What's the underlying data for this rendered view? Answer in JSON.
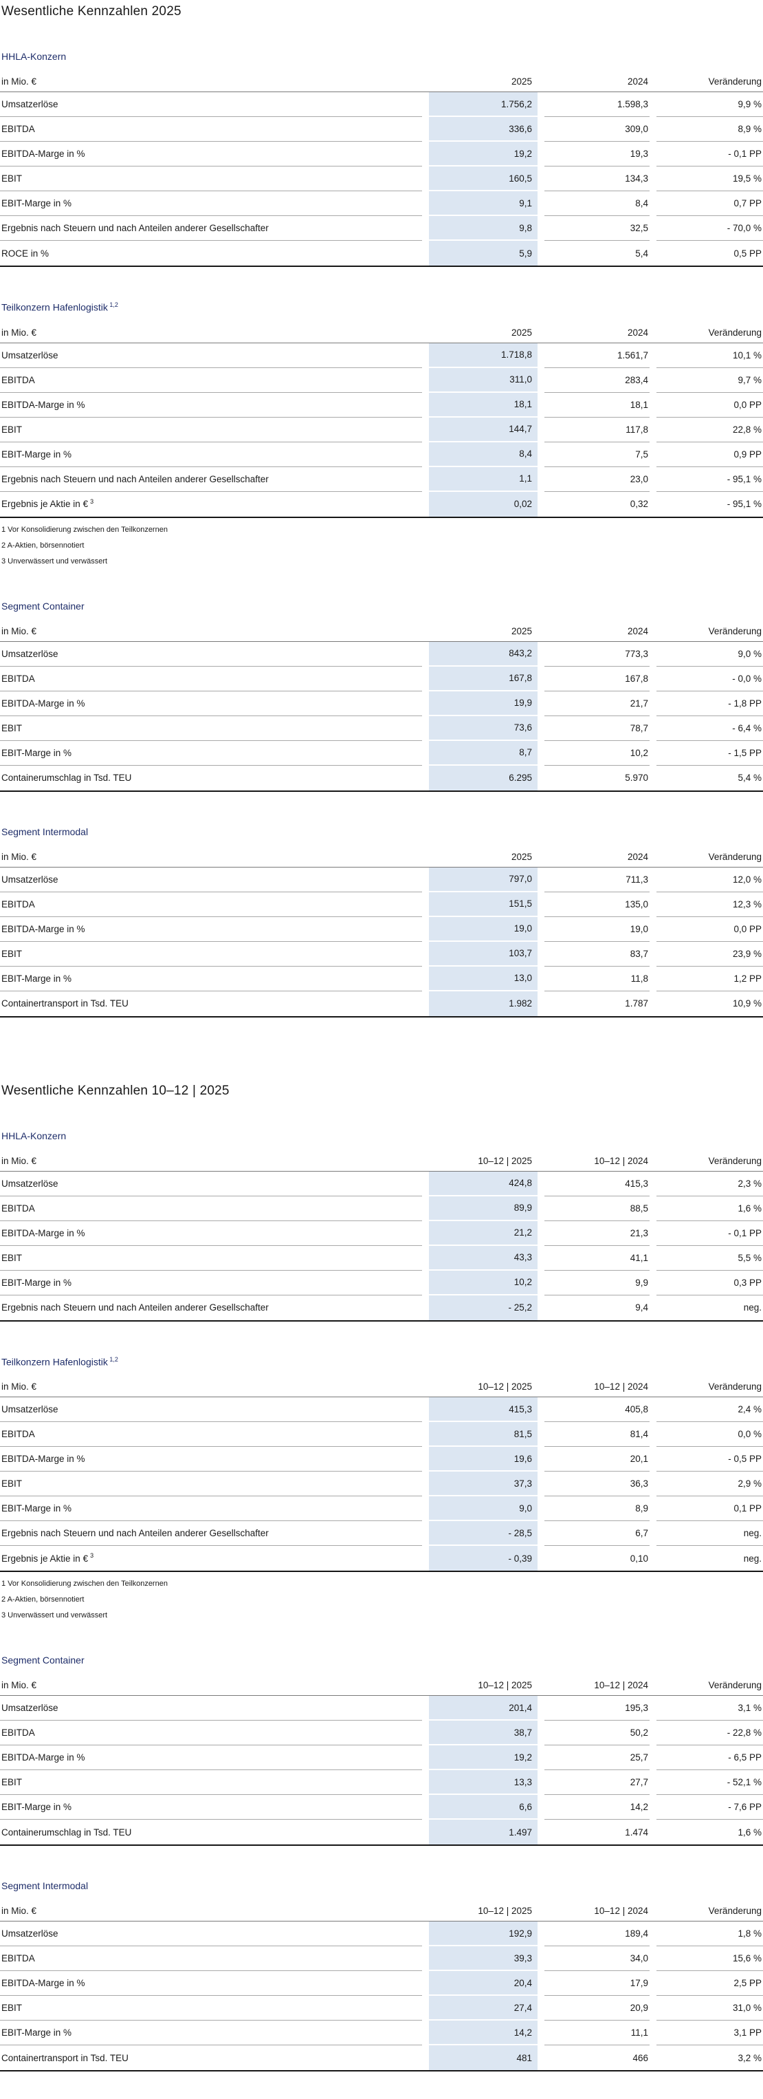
{
  "colors": {
    "highlight_column": "#dce6f2",
    "heading_blue": "#1e2d69",
    "row_separator": "#a9a9a9",
    "header_rule": "#7a7a7a",
    "bottom_rule": "#161616"
  },
  "sections": [
    {
      "title": "Wesentliche Kennzahlen 2025",
      "tables": [
        {
          "heading": "HHLA-Konzern",
          "heading_sup": "",
          "col_label": "in Mio. €",
          "col_current": "2025",
          "col_prior": "2024",
          "col_change": "Veränderung",
          "rows": [
            {
              "label": "Umsatzerlöse",
              "sup": "",
              "current": "1.756,2",
              "prior": "1.598,3",
              "change": "9,9 %"
            },
            {
              "label": "EBITDA",
              "sup": "",
              "current": "336,6",
              "prior": "309,0",
              "change": "8,9 %"
            },
            {
              "label": "EBITDA-Marge in %",
              "sup": "",
              "current": "19,2",
              "prior": "19,3",
              "change": "- 0,1 PP"
            },
            {
              "label": "EBIT",
              "sup": "",
              "current": "160,5",
              "prior": "134,3",
              "change": "19,5 %"
            },
            {
              "label": "EBIT-Marge in %",
              "sup": "",
              "current": "9,1",
              "prior": "8,4",
              "change": "0,7 PP"
            },
            {
              "label": "Ergebnis nach Steuern und nach Anteilen anderer Gesellschafter",
              "sup": "",
              "current": "9,8",
              "prior": "32,5",
              "change": "- 70,0 %"
            },
            {
              "label": "ROCE in %",
              "sup": "",
              "current": "5,9",
              "prior": "5,4",
              "change": "0,5 PP"
            }
          ],
          "footnotes": []
        },
        {
          "heading": "Teilkonzern Hafenlogistik",
          "heading_sup": "1,2",
          "col_label": "in Mio. €",
          "col_current": "2025",
          "col_prior": "2024",
          "col_change": "Veränderung",
          "rows": [
            {
              "label": "Umsatzerlöse",
              "sup": "",
              "current": "1.718,8",
              "prior": "1.561,7",
              "change": "10,1 %"
            },
            {
              "label": "EBITDA",
              "sup": "",
              "current": "311,0",
              "prior": "283,4",
              "change": "9,7 %"
            },
            {
              "label": "EBITDA-Marge in %",
              "sup": "",
              "current": "18,1",
              "prior": "18,1",
              "change": "0,0 PP"
            },
            {
              "label": "EBIT",
              "sup": "",
              "current": "144,7",
              "prior": "117,8",
              "change": "22,8 %"
            },
            {
              "label": "EBIT-Marge in %",
              "sup": "",
              "current": "8,4",
              "prior": "7,5",
              "change": "0,9 PP"
            },
            {
              "label": "Ergebnis nach Steuern und nach Anteilen anderer Gesellschafter",
              "sup": "",
              "current": "1,1",
              "prior": "23,0",
              "change": "- 95,1 %"
            },
            {
              "label": "Ergebnis je Aktie in €",
              "sup": "3",
              "current": "0,02",
              "prior": "0,32",
              "change": "- 95,1 %"
            }
          ],
          "footnotes": [
            "1 Vor Konsolidierung zwischen den Teilkonzernen",
            "2 A-Aktien, börsennotiert",
            "3 Unverwässert und verwässert"
          ]
        },
        {
          "heading": "Segment Container",
          "heading_sup": "",
          "col_label": "in Mio. €",
          "col_current": "2025",
          "col_prior": "2024",
          "col_change": "Veränderung",
          "rows": [
            {
              "label": "Umsatzerlöse",
              "sup": "",
              "current": "843,2",
              "prior": "773,3",
              "change": "9,0 %"
            },
            {
              "label": "EBITDA",
              "sup": "",
              "current": "167,8",
              "prior": "167,8",
              "change": "- 0,0 %"
            },
            {
              "label": "EBITDA-Marge in %",
              "sup": "",
              "current": "19,9",
              "prior": "21,7",
              "change": "- 1,8 PP"
            },
            {
              "label": "EBIT",
              "sup": "",
              "current": "73,6",
              "prior": "78,7",
              "change": "- 6,4 %"
            },
            {
              "label": "EBIT-Marge in %",
              "sup": "",
              "current": "8,7",
              "prior": "10,2",
              "change": "- 1,5 PP"
            },
            {
              "label": "Containerumschlag in Tsd. TEU",
              "sup": "",
              "current": "6.295",
              "prior": "5.970",
              "change": "5,4 %"
            }
          ],
          "footnotes": []
        },
        {
          "heading": "Segment Intermodal",
          "heading_sup": "",
          "col_label": "in Mio. €",
          "col_current": "2025",
          "col_prior": "2024",
          "col_change": "Veränderung",
          "rows": [
            {
              "label": "Umsatzerlöse",
              "sup": "",
              "current": "797,0",
              "prior": "711,3",
              "change": "12,0 %"
            },
            {
              "label": "EBITDA",
              "sup": "",
              "current": "151,5",
              "prior": "135,0",
              "change": "12,3 %"
            },
            {
              "label": "EBITDA-Marge in %",
              "sup": "",
              "current": "19,0",
              "prior": "19,0",
              "change": "0,0 PP"
            },
            {
              "label": "EBIT",
              "sup": "",
              "current": "103,7",
              "prior": "83,7",
              "change": "23,9 %"
            },
            {
              "label": "EBIT-Marge in %",
              "sup": "",
              "current": "13,0",
              "prior": "11,8",
              "change": "1,2 PP"
            },
            {
              "label": "Containertransport in Tsd. TEU",
              "sup": "",
              "current": "1.982",
              "prior": "1.787",
              "change": "10,9 %"
            }
          ],
          "footnotes": []
        }
      ]
    },
    {
      "title": "Wesentliche Kennzahlen 10–12 | 2025",
      "tables": [
        {
          "heading": "HHLA-Konzern",
          "heading_sup": "",
          "col_label": "in Mio. €",
          "col_current": "10–12 | 2025",
          "col_prior": "10–12 | 2024",
          "col_change": "Veränderung",
          "rows": [
            {
              "label": "Umsatzerlöse",
              "sup": "",
              "current": "424,8",
              "prior": "415,3",
              "change": "2,3 %"
            },
            {
              "label": "EBITDA",
              "sup": "",
              "current": "89,9",
              "prior": "88,5",
              "change": "1,6 %"
            },
            {
              "label": "EBITDA-Marge in %",
              "sup": "",
              "current": "21,2",
              "prior": "21,3",
              "change": "- 0,1 PP"
            },
            {
              "label": "EBIT",
              "sup": "",
              "current": "43,3",
              "prior": "41,1",
              "change": "5,5 %"
            },
            {
              "label": "EBIT-Marge in %",
              "sup": "",
              "current": "10,2",
              "prior": "9,9",
              "change": "0,3 PP"
            },
            {
              "label": "Ergebnis nach Steuern und nach Anteilen anderer Gesellschafter",
              "sup": "",
              "current": "- 25,2",
              "prior": "9,4",
              "change": "neg."
            }
          ],
          "footnotes": []
        },
        {
          "heading": "Teilkonzern Hafenlogistik",
          "heading_sup": "1,2",
          "col_label": "in Mio. €",
          "col_current": "10–12 | 2025",
          "col_prior": "10–12 | 2024",
          "col_change": "Veränderung",
          "rows": [
            {
              "label": "Umsatzerlöse",
              "sup": "",
              "current": "415,3",
              "prior": "405,8",
              "change": "2,4 %"
            },
            {
              "label": "EBITDA",
              "sup": "",
              "current": "81,5",
              "prior": "81,4",
              "change": "0,0 %"
            },
            {
              "label": "EBITDA-Marge in %",
              "sup": "",
              "current": "19,6",
              "prior": "20,1",
              "change": "- 0,5 PP"
            },
            {
              "label": "EBIT",
              "sup": "",
              "current": "37,3",
              "prior": "36,3",
              "change": "2,9 %"
            },
            {
              "label": "EBIT-Marge in %",
              "sup": "",
              "current": "9,0",
              "prior": "8,9",
              "change": "0,1 PP"
            },
            {
              "label": "Ergebnis nach Steuern und nach Anteilen anderer Gesellschafter",
              "sup": "",
              "current": "- 28,5",
              "prior": "6,7",
              "change": "neg."
            },
            {
              "label": "Ergebnis je Aktie in €",
              "sup": "3",
              "current": "- 0,39",
              "prior": "0,10",
              "change": "neg."
            }
          ],
          "footnotes": [
            "1 Vor Konsolidierung zwischen den Teilkonzernen",
            "2 A-Aktien, börsennotiert",
            "3 Unverwässert und verwässert"
          ]
        },
        {
          "heading": "Segment Container",
          "heading_sup": "",
          "col_label": "in Mio. €",
          "col_current": "10–12 | 2025",
          "col_prior": "10–12 | 2024",
          "col_change": "Veränderung",
          "rows": [
            {
              "label": "Umsatzerlöse",
              "sup": "",
              "current": "201,4",
              "prior": "195,3",
              "change": "3,1 %"
            },
            {
              "label": "EBITDA",
              "sup": "",
              "current": "38,7",
              "prior": "50,2",
              "change": "- 22,8 %"
            },
            {
              "label": "EBITDA-Marge in %",
              "sup": "",
              "current": "19,2",
              "prior": "25,7",
              "change": "- 6,5 PP"
            },
            {
              "label": "EBIT",
              "sup": "",
              "current": "13,3",
              "prior": "27,7",
              "change": "- 52,1 %"
            },
            {
              "label": "EBIT-Marge in %",
              "sup": "",
              "current": "6,6",
              "prior": "14,2",
              "change": "- 7,6 PP"
            },
            {
              "label": "Containerumschlag in Tsd. TEU",
              "sup": "",
              "current": "1.497",
              "prior": "1.474",
              "change": "1,6 %"
            }
          ],
          "footnotes": []
        },
        {
          "heading": "Segment Intermodal",
          "heading_sup": "",
          "col_label": "in Mio. €",
          "col_current": "10–12 | 2025",
          "col_prior": "10–12 | 2024",
          "col_change": "Veränderung",
          "rows": [
            {
              "label": "Umsatzerlöse",
              "sup": "",
              "current": "192,9",
              "prior": "189,4",
              "change": "1,8 %"
            },
            {
              "label": "EBITDA",
              "sup": "",
              "current": "39,3",
              "prior": "34,0",
              "change": "15,6 %"
            },
            {
              "label": "EBITDA-Marge in %",
              "sup": "",
              "current": "20,4",
              "prior": "17,9",
              "change": "2,5 PP"
            },
            {
              "label": "EBIT",
              "sup": "",
              "current": "27,4",
              "prior": "20,9",
              "change": "31,0 %"
            },
            {
              "label": "EBIT-Marge in %",
              "sup": "",
              "current": "14,2",
              "prior": "11,1",
              "change": "3,1 PP"
            },
            {
              "label": "Containertransport in Tsd. TEU",
              "sup": "",
              "current": "481",
              "prior": "466",
              "change": "3,2 %"
            }
          ],
          "footnotes": []
        }
      ]
    }
  ]
}
